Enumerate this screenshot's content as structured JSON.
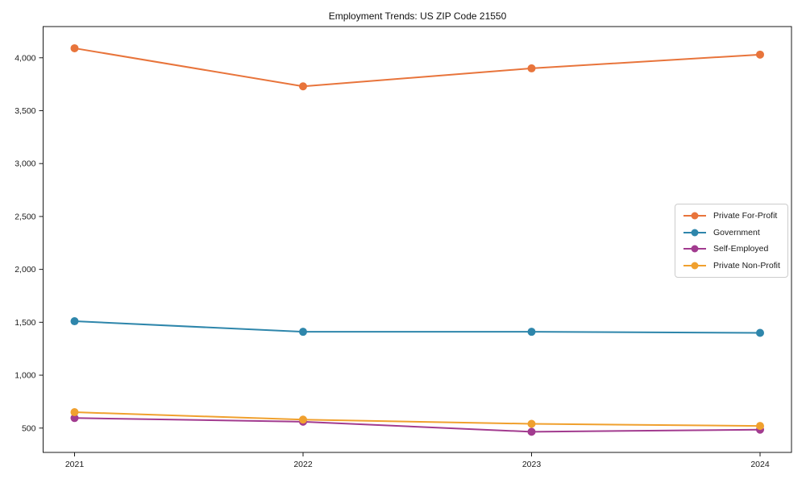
{
  "chart_data": {
    "type": "line",
    "title": "Employment Trends: US ZIP Code 21550",
    "x": [
      "2021",
      "2022",
      "2023",
      "2024"
    ],
    "y_ticks": [
      500,
      1000,
      1500,
      2000,
      2500,
      3000,
      3500,
      4000
    ],
    "ylim": [
      270,
      4295
    ],
    "grid": false,
    "legend_position": "center-right",
    "axis_color": "#1a1a1a",
    "series": [
      {
        "name": "Private For-Profit",
        "color": "#e8743b",
        "values": [
          4090,
          3730,
          3900,
          4030
        ]
      },
      {
        "name": "Government",
        "color": "#2e86ab",
        "values": [
          1510,
          1410,
          1410,
          1400
        ]
      },
      {
        "name": "Self-Employed",
        "color": "#a23b8f",
        "values": [
          595,
          560,
          465,
          485
        ]
      },
      {
        "name": "Private Non-Profit",
        "color": "#f0a02e",
        "values": [
          650,
          580,
          540,
          520
        ]
      }
    ]
  }
}
